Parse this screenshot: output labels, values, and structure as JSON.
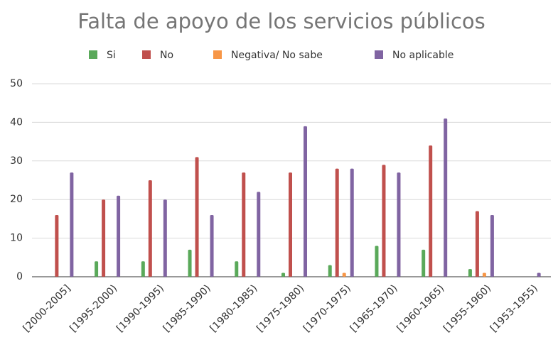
{
  "chart_data": {
    "type": "bar",
    "title": "Falta de apoyo de los servicios públicos",
    "categories": [
      "[2000-2005]",
      "[1995-2000)",
      "[1990-1995)",
      "[1985-1990)",
      "[1980-1985)",
      "[1975-1980)",
      "[1970-1975)",
      "[1965-1970)",
      "[1960-1965)",
      "[1955-1960)",
      "[1953-1955)"
    ],
    "series": [
      {
        "name": "Si",
        "color": "#5aa95a",
        "values": [
          0,
          4,
          4,
          7,
          4,
          1,
          3,
          8,
          7,
          2,
          0
        ]
      },
      {
        "name": "No",
        "color": "#c0504d",
        "values": [
          16,
          20,
          25,
          31,
          27,
          27,
          28,
          29,
          34,
          17,
          0
        ]
      },
      {
        "name": "Negativa/ No sabe",
        "color": "#f79646",
        "values": [
          0,
          0,
          0,
          0,
          0,
          0,
          1,
          0,
          0,
          1,
          0
        ]
      },
      {
        "name": "No aplicable",
        "color": "#8064a2",
        "values": [
          27,
          21,
          20,
          16,
          22,
          39,
          28,
          27,
          41,
          16,
          1
        ]
      }
    ],
    "ylim": [
      0,
      50
    ],
    "yticks": [
      0,
      10,
      20,
      30,
      40,
      50
    ],
    "grid": true,
    "legend": "top"
  }
}
